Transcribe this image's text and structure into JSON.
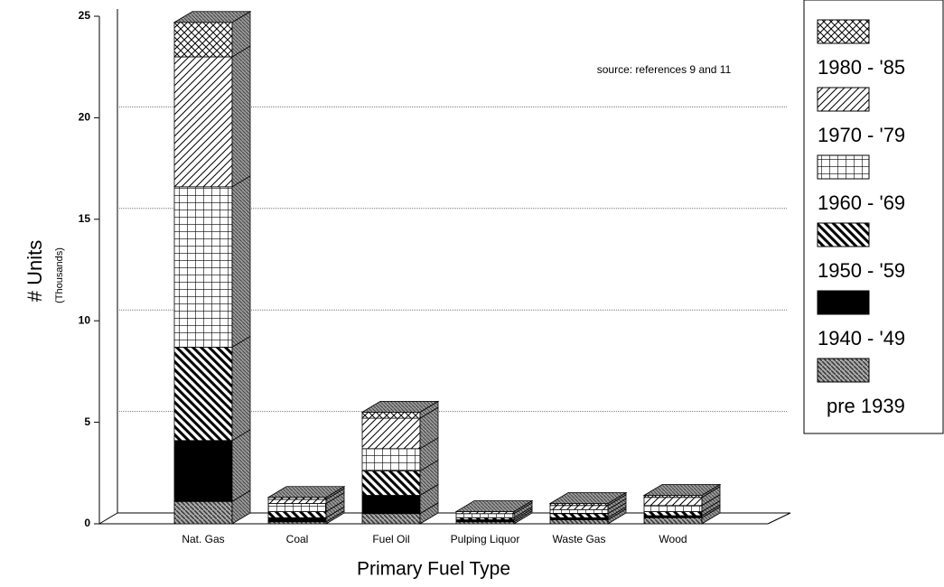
{
  "chart_data": {
    "type": "bar3d_stacked",
    "y_label": "# Units",
    "y_sublabel": "(Thousands)",
    "x_label": "Primary Fuel Type",
    "annotation": "source: references 9 and 11",
    "categories": [
      "Nat. Gas",
      "Coal",
      "Fuel Oil",
      "Pulping Liquor",
      "Waste Gas",
      "Wood"
    ],
    "series": [
      {
        "name": "pre 1939",
        "pattern": "dense",
        "values": [
          1.1,
          0.1,
          0.5,
          0.1,
          0.2,
          0.3
        ]
      },
      {
        "name": "1940 - '49",
        "pattern": "solid",
        "values": [
          3.0,
          0.2,
          0.9,
          0.1,
          0.1,
          0.1
        ]
      },
      {
        "name": "1950 - '59",
        "pattern": "backslash",
        "values": [
          4.6,
          0.3,
          1.2,
          0.1,
          0.2,
          0.2
        ]
      },
      {
        "name": "1960 - '69",
        "pattern": "grid",
        "values": [
          7.9,
          0.4,
          1.1,
          0.2,
          0.2,
          0.3
        ]
      },
      {
        "name": "1970 - '79",
        "pattern": "diagonal",
        "values": [
          6.4,
          0.2,
          1.5,
          0.1,
          0.2,
          0.4
        ]
      },
      {
        "name": "1980 - '85",
        "pattern": "crosshatch",
        "values": [
          1.7,
          0.1,
          0.3,
          0.0,
          0.1,
          0.1
        ]
      }
    ],
    "ylim": [
      0,
      25
    ],
    "yticks": [
      0,
      5,
      10,
      15,
      20,
      25
    ],
    "grid": true,
    "legend": "right"
  }
}
